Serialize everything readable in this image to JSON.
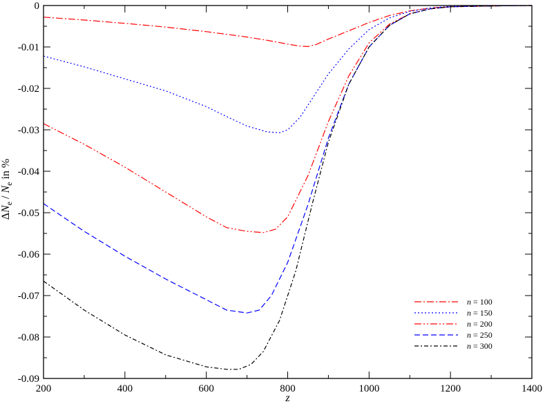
{
  "chart_data": {
    "type": "line",
    "title": "",
    "xlabel": "z",
    "ylabel": "ΔN_e / N_e in %",
    "ylabel_parts": [
      "Δ",
      "N",
      "e",
      " / ",
      "N",
      "e",
      " in %"
    ],
    "xlim": [
      200,
      1400
    ],
    "ylim": [
      -0.09,
      0
    ],
    "x_ticks": [
      200,
      400,
      600,
      800,
      1000,
      1200,
      1400
    ],
    "y_ticks": [
      0,
      -0.01,
      -0.02,
      -0.03,
      -0.04,
      -0.05,
      -0.06,
      -0.07,
      -0.08,
      -0.09
    ],
    "x_tick_labels": [
      "200",
      "400",
      "600",
      "800",
      "1000",
      "1200",
      "1400"
    ],
    "y_tick_labels": [
      "0",
      "-0.01",
      "-0.02",
      "-0.03",
      "-0.04",
      "-0.05",
      "-0.06",
      "-0.07",
      "-0.08",
      "-0.09"
    ],
    "grid": false,
    "legend_position": "bottom-right",
    "series": [
      {
        "name": "n = 100",
        "legend_var": "n",
        "legend_value": "= 100",
        "color": "#ff0000",
        "dash": "10,3,2,3",
        "x": [
          200,
          300,
          400,
          500,
          600,
          700,
          750,
          800,
          830,
          850,
          870,
          900,
          950,
          1000,
          1050,
          1100,
          1150,
          1200,
          1300,
          1400
        ],
        "y": [
          -0.0028,
          -0.0035,
          -0.0043,
          -0.0052,
          -0.0063,
          -0.0076,
          -0.0084,
          -0.0093,
          -0.0098,
          -0.0099,
          -0.0094,
          -0.0081,
          -0.0061,
          -0.0041,
          -0.0024,
          -0.0013,
          -0.0006,
          -0.0003,
          -0.0001,
          0
        ]
      },
      {
        "name": "n = 150",
        "legend_var": "n",
        "legend_value": "= 150",
        "color": "#0000ff",
        "dash": "2,3",
        "x": [
          200,
          250,
          300,
          400,
          500,
          600,
          650,
          700,
          750,
          780,
          800,
          830,
          860,
          900,
          950,
          1000,
          1050,
          1100,
          1150,
          1200,
          1300,
          1400
        ],
        "y": [
          -0.0122,
          -0.0135,
          -0.0148,
          -0.0177,
          -0.0206,
          -0.0244,
          -0.0268,
          -0.0291,
          -0.0305,
          -0.0307,
          -0.03,
          -0.027,
          -0.0225,
          -0.0165,
          -0.0105,
          -0.0058,
          -0.003,
          -0.0014,
          -0.0006,
          -0.0002,
          -0.0001,
          0
        ]
      },
      {
        "name": "n = 200",
        "legend_var": "n",
        "legend_value": "= 200",
        "color": "#ff0000",
        "dash": "10,3,2,3,2,3",
        "x": [
          200,
          300,
          400,
          500,
          600,
          650,
          700,
          740,
          770,
          800,
          850,
          900,
          950,
          1000,
          1050,
          1100,
          1150,
          1200,
          1300,
          1400
        ],
        "y": [
          -0.0285,
          -0.0335,
          -0.039,
          -0.045,
          -0.051,
          -0.0536,
          -0.0545,
          -0.0548,
          -0.054,
          -0.051,
          -0.041,
          -0.028,
          -0.017,
          -0.009,
          -0.0045,
          -0.002,
          -0.0008,
          -0.0003,
          -0.0001,
          0
        ]
      },
      {
        "name": "n = 250",
        "legend_var": "n",
        "legend_value": "= 250",
        "color": "#0000ff",
        "dash": "8,4",
        "x": [
          200,
          300,
          400,
          500,
          600,
          650,
          700,
          730,
          760,
          800,
          850,
          900,
          950,
          1000,
          1050,
          1100,
          1150,
          1200,
          1300,
          1400
        ],
        "y": [
          -0.0478,
          -0.0545,
          -0.0605,
          -0.066,
          -0.071,
          -0.0735,
          -0.0742,
          -0.0735,
          -0.07,
          -0.062,
          -0.048,
          -0.032,
          -0.019,
          -0.01,
          -0.0048,
          -0.002,
          -0.0008,
          -0.0003,
          -0.0001,
          0
        ]
      },
      {
        "name": "n = 300",
        "legend_var": "n",
        "legend_value": "= 300",
        "color": "#000000",
        "dash": "6,3,2,3",
        "x": [
          200,
          300,
          400,
          500,
          600,
          650,
          680,
          710,
          740,
          780,
          820,
          860,
          900,
          950,
          1000,
          1050,
          1100,
          1150,
          1200,
          1300,
          1400
        ],
        "y": [
          -0.0665,
          -0.0735,
          -0.0795,
          -0.0843,
          -0.0872,
          -0.0878,
          -0.0878,
          -0.0866,
          -0.0835,
          -0.076,
          -0.064,
          -0.048,
          -0.033,
          -0.019,
          -0.01,
          -0.0048,
          -0.002,
          -0.0008,
          -0.0003,
          -0.0001,
          0
        ]
      }
    ]
  }
}
